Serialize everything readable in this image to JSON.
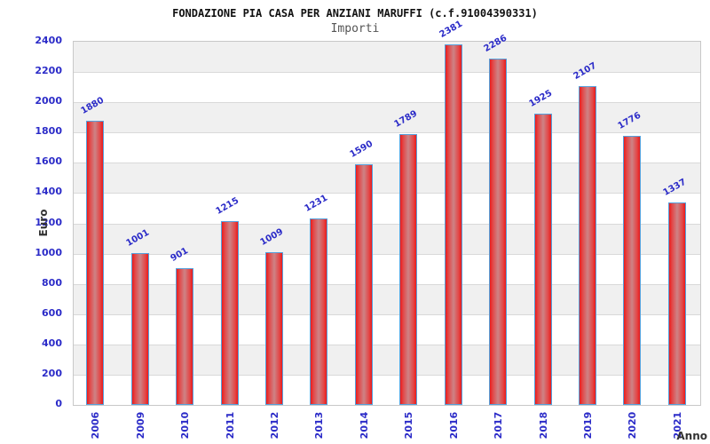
{
  "chart_data": {
    "type": "bar",
    "title": "FONDAZIONE PIA CASA PER ANZIANI MARUFFI (c.f.91004390331)",
    "subtitle": "Importi",
    "xlabel": "Anno",
    "ylabel": "Euro",
    "categories": [
      "2006",
      "2009",
      "2010",
      "2011",
      "2012",
      "2013",
      "2014",
      "2015",
      "2016",
      "2017",
      "2018",
      "2019",
      "2020",
      "2021"
    ],
    "values": [
      1880,
      1001,
      901,
      1215,
      1009,
      1231,
      1590,
      1789,
      2381,
      2286,
      1925,
      2107,
      1776,
      1337
    ],
    "ylim": [
      0,
      2400
    ],
    "y_ticks": [
      0,
      200,
      400,
      600,
      800,
      1000,
      1200,
      1400,
      1600,
      1800,
      2000,
      2200,
      2400
    ],
    "grid": true,
    "legend": "none",
    "colors": {
      "label_blue": "#2b2bc8",
      "bar_edge_red": "#ea1b1b",
      "bar_center": "#cd8386",
      "bar_border_blue": "#55a0dc",
      "band_gray": "#f0f0f0",
      "gridline": "#d9d9d9",
      "plot_border": "#c8c8c8",
      "title_color": "#111111",
      "subtitle_color": "#555555",
      "axis_title_color": "#333333"
    }
  }
}
